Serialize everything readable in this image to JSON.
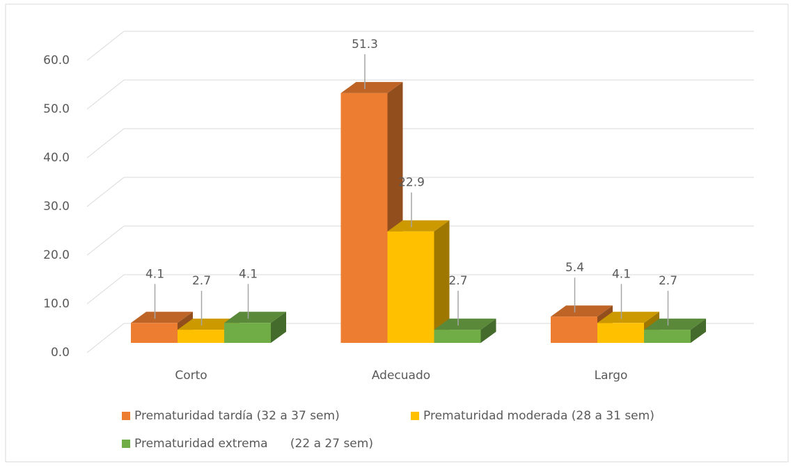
{
  "chart_data": {
    "type": "bar3d",
    "categories": [
      "Corto",
      "Adecuado",
      "Largo"
    ],
    "series": [
      {
        "name": "Prematuridad tardía (32 a 37 sem)",
        "color": "#ED7D31",
        "values": [
          4.1,
          51.3,
          5.4
        ]
      },
      {
        "name": "Prematuridad moderada (28 a 31 sem)",
        "color": "#FFC000",
        "values": [
          2.7,
          22.9,
          4.1
        ]
      },
      {
        "name": "Prematuridad extrema      (22 a 27 sem)",
        "color": "#70AD47",
        "values": [
          4.1,
          2.7,
          2.7
        ]
      }
    ],
    "ylim": [
      0,
      60
    ],
    "yticks": [
      {
        "value": 0,
        "label": "0.0"
      },
      {
        "value": 10,
        "label": "10.0"
      },
      {
        "value": 20,
        "label": "20.0"
      },
      {
        "value": 30,
        "label": "30.0"
      },
      {
        "value": 40,
        "label": "40.0"
      },
      {
        "value": 50,
        "label": "50.0"
      },
      {
        "value": 60,
        "label": "60.0"
      }
    ],
    "grid": true,
    "legend": "bottom"
  }
}
